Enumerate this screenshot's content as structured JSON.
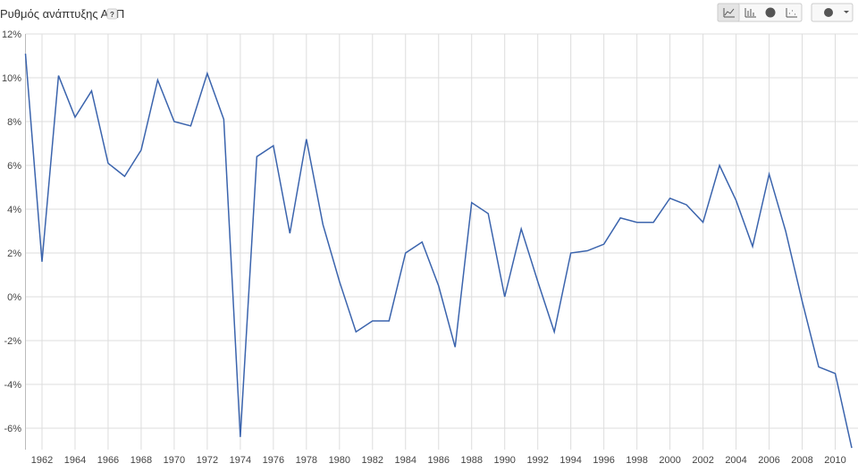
{
  "chart_data": {
    "type": "line",
    "title": "Ρυθμός ανάπτυξης ΑΕΠ",
    "help": "?",
    "x": [
      1961,
      1962,
      1963,
      1964,
      1965,
      1966,
      1967,
      1968,
      1969,
      1970,
      1971,
      1972,
      1973,
      1974,
      1975,
      1976,
      1977,
      1978,
      1979,
      1980,
      1981,
      1982,
      1983,
      1984,
      1985,
      1986,
      1987,
      1988,
      1989,
      1990,
      1991,
      1992,
      1993,
      1994,
      1995,
      1996,
      1997,
      1998,
      1999,
      2000,
      2001,
      2002,
      2003,
      2004,
      2005,
      2006,
      2007,
      2008,
      2009,
      2010,
      2011
    ],
    "series": [
      {
        "color": "#3b64ad",
        "values": [
          11.1,
          1.6,
          10.1,
          8.2,
          9.4,
          6.1,
          5.5,
          6.7,
          9.9,
          8.0,
          7.8,
          10.2,
          8.1,
          -6.4,
          6.4,
          6.9,
          2.9,
          7.2,
          3.3,
          0.7,
          -1.6,
          -1.1,
          -1.1,
          2.0,
          2.5,
          0.5,
          -2.3,
          4.3,
          3.8,
          0.0,
          3.1,
          0.7,
          -1.6,
          2.0,
          2.1,
          2.4,
          3.6,
          3.4,
          3.4,
          4.5,
          4.2,
          3.4,
          6.0,
          4.4,
          2.3,
          5.6,
          3.0,
          -0.2,
          -3.2,
          -3.5,
          -6.9
        ]
      }
    ],
    "xlim": [
      1961,
      2011
    ],
    "xticks": [
      1962,
      1964,
      1966,
      1968,
      1970,
      1972,
      1974,
      1976,
      1978,
      1980,
      1982,
      1984,
      1986,
      1988,
      1990,
      1992,
      1994,
      1996,
      1998,
      2000,
      2002,
      2004,
      2006,
      2008,
      2010
    ],
    "ylim": [
      -7,
      12
    ],
    "yticks": [
      {
        "value": 12,
        "label": "12%"
      },
      {
        "value": 10,
        "label": "10%"
      },
      {
        "value": 8,
        "label": "8%"
      },
      {
        "value": 6,
        "label": "6%"
      },
      {
        "value": 4,
        "label": "4%"
      },
      {
        "value": 2,
        "label": "2%"
      },
      {
        "value": 0,
        "label": "0%"
      },
      {
        "value": -2,
        "label": "-2%"
      },
      {
        "value": -4,
        "label": "-4%"
      },
      {
        "value": -6,
        "label": "-6%"
      }
    ],
    "grid": true
  }
}
